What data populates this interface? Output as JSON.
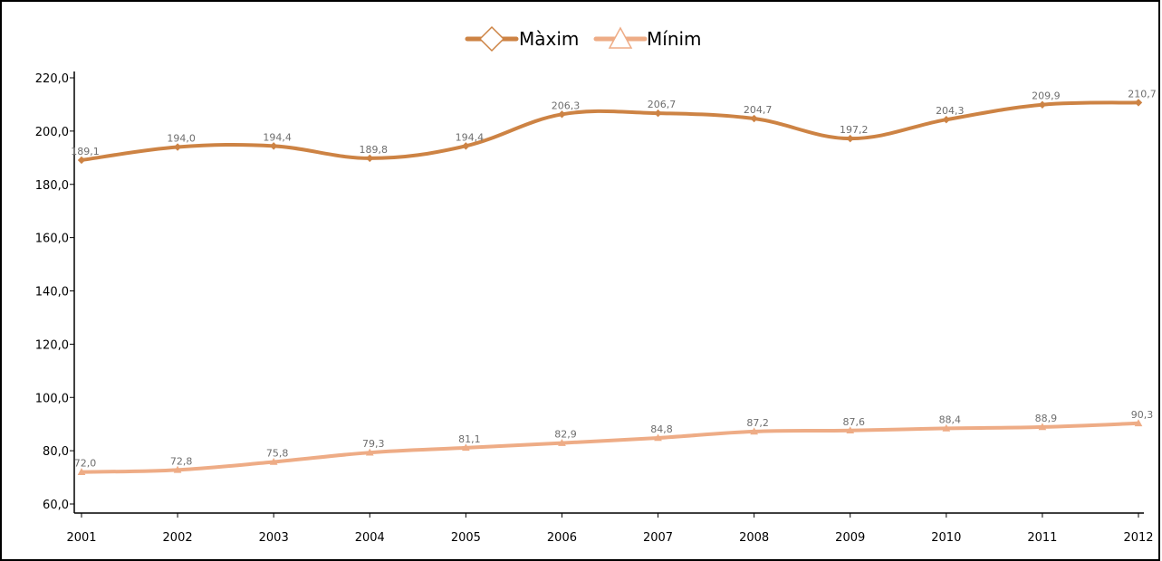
{
  "chart_data": {
    "type": "line",
    "categories": [
      "2001",
      "2002",
      "2003",
      "2004",
      "2005",
      "2006",
      "2007",
      "2008",
      "2009",
      "2010",
      "2011",
      "2012"
    ],
    "series": [
      {
        "name": "Màxim",
        "color": "#cd8344",
        "marker": "diamond",
        "values": [
          189.1,
          194.0,
          194.4,
          189.8,
          194.4,
          206.3,
          206.7,
          204.7,
          197.2,
          204.3,
          209.9,
          210.7
        ],
        "labels": [
          "189,1",
          "194,0",
          "194,4",
          "189,8",
          "194,4",
          "206,3",
          "206,7",
          "204,7",
          "197,2",
          "204,3",
          "209,9",
          "210,7"
        ]
      },
      {
        "name": "Mínim",
        "color": "#eeac86",
        "marker": "triangle",
        "values": [
          72.0,
          72.8,
          75.8,
          79.3,
          81.1,
          82.9,
          84.8,
          87.2,
          87.6,
          88.4,
          88.9,
          90.3
        ],
        "labels": [
          "72,0",
          "72,8",
          "75,8",
          "79,3",
          "81,1",
          "82,9",
          "84,8",
          "87,2",
          "87,6",
          "88,4",
          "88,9",
          "90,3"
        ]
      }
    ],
    "ylim": [
      60,
      220
    ],
    "yticks": [
      "60,0",
      "80,0",
      "100,0",
      "120,0",
      "140,0",
      "160,0",
      "180,0",
      "200,0",
      "220,0"
    ],
    "grid": false,
    "legend": "top-center",
    "title": "",
    "xlabel": "",
    "ylabel": ""
  }
}
